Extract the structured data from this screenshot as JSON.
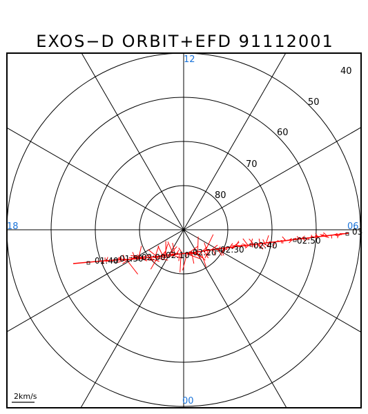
{
  "title": "EXOS−D ORBIT+EFD 91112001",
  "latitude_labels": [
    "40",
    "50",
    "60",
    "70",
    "80"
  ],
  "mlt_labels": {
    "top": "12",
    "bottom": "00",
    "left": "18",
    "right": "06"
  },
  "scale_label": "2km/s",
  "orbit": {
    "color": "#ff0000",
    "time_labels": [
      "01:40",
      "01:50",
      "02:00",
      "02:10",
      "02:20",
      "02:30",
      "02:40",
      "02:50",
      "03"
    ]
  }
}
